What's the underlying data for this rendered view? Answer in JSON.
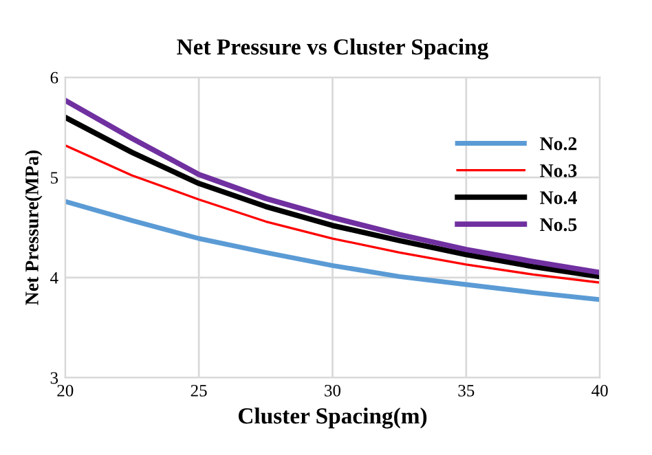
{
  "chart_data": {
    "type": "line",
    "title": "Net Pressure vs Cluster Spacing",
    "xlabel": "Cluster Spacing(m)",
    "ylabel": "Net Pressure(MPa)",
    "x": [
      20,
      22.5,
      25,
      27.5,
      30,
      32.5,
      35,
      37.5,
      40
    ],
    "series": [
      {
        "name": "No.2",
        "color": "#5b9bd5",
        "values": [
          4.76,
          4.57,
          4.39,
          4.25,
          4.12,
          4.01,
          3.93,
          3.85,
          3.78
        ]
      },
      {
        "name": "No.3",
        "color": "#ff0000",
        "values": [
          5.32,
          5.02,
          4.78,
          4.56,
          4.39,
          4.25,
          4.13,
          4.03,
          3.95
        ]
      },
      {
        "name": "No.4",
        "color": "#000000",
        "values": [
          5.6,
          5.25,
          4.94,
          4.71,
          4.52,
          4.37,
          4.23,
          4.11,
          4.01
        ]
      },
      {
        "name": "No.5",
        "color": "#7030a0",
        "values": [
          5.77,
          5.39,
          5.03,
          4.79,
          4.6,
          4.43,
          4.28,
          4.16,
          4.05
        ]
      }
    ],
    "xlim": [
      20,
      40
    ],
    "xticks": [
      20,
      25,
      30,
      35,
      40
    ],
    "ylim": [
      3,
      6
    ],
    "yticks": [
      3,
      4,
      5,
      6
    ],
    "grid": true,
    "legend": "top right",
    "marker": "none",
    "line_style": "solid"
  }
}
